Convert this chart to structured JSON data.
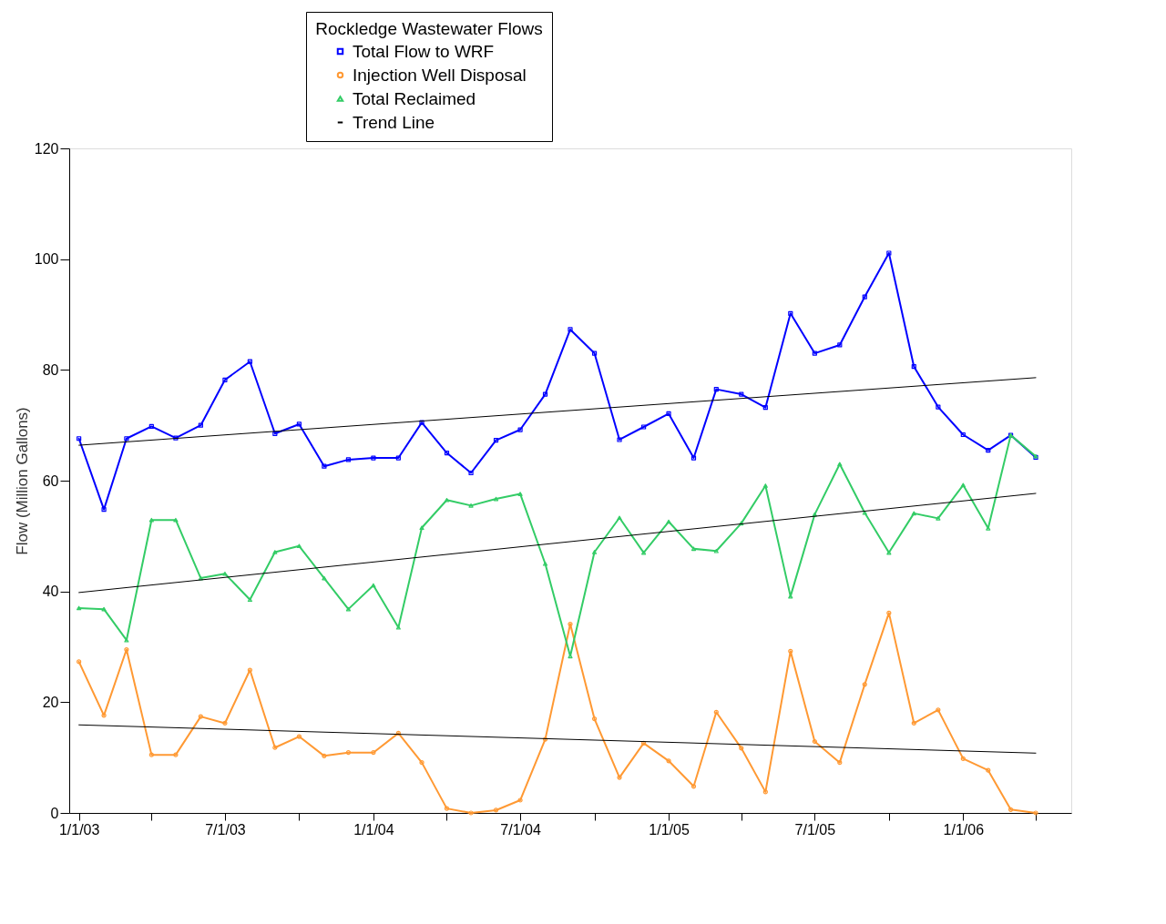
{
  "chart_data": {
    "type": "line",
    "legend_title": "Rockledge Wastewater Flows",
    "ylabel": "Flow (Million Gallons)",
    "legend": "top",
    "grid": false,
    "x": [
      "2003-01",
      "2003-02",
      "2003-03",
      "2003-04",
      "2003-05",
      "2003-06",
      "2003-07",
      "2003-08",
      "2003-09",
      "2003-10",
      "2003-11",
      "2003-12",
      "2004-01",
      "2004-02",
      "2004-03",
      "2004-04",
      "2004-05",
      "2004-06",
      "2004-07",
      "2004-08",
      "2004-09",
      "2004-10",
      "2004-11",
      "2004-12",
      "2005-01",
      "2005-02",
      "2005-03",
      "2005-04",
      "2005-05",
      "2005-06",
      "2005-07",
      "2005-08",
      "2005-09",
      "2005-10",
      "2005-11",
      "2005-12",
      "2006-01",
      "2006-02",
      "2006-03",
      "2006-04"
    ],
    "xlim": [
      "2002-12-20",
      "2006-05-15"
    ],
    "xticks": [
      {
        "value": "2003-01-01",
        "label": "1/1/03"
      },
      {
        "value": "2003-04-01",
        "label": null
      },
      {
        "value": "2003-07-01",
        "label": "7/1/03"
      },
      {
        "value": "2003-10-01",
        "label": null
      },
      {
        "value": "2004-01-01",
        "label": "1/1/04"
      },
      {
        "value": "2004-04-01",
        "label": null
      },
      {
        "value": "2004-07-01",
        "label": "7/1/04"
      },
      {
        "value": "2004-10-01",
        "label": null
      },
      {
        "value": "2005-01-01",
        "label": "1/1/05"
      },
      {
        "value": "2005-04-01",
        "label": null
      },
      {
        "value": "2005-07-01",
        "label": "7/1/05"
      },
      {
        "value": "2005-10-01",
        "label": null
      },
      {
        "value": "2006-01-01",
        "label": "1/1/06"
      },
      {
        "value": "2006-04-01",
        "label": null
      }
    ],
    "ylim": [
      0,
      120
    ],
    "yticks": [
      0,
      20,
      40,
      60,
      80,
      100,
      120
    ],
    "series": [
      {
        "name": "Total Flow to WRF",
        "color": "#0000ff",
        "marker": "square",
        "values": [
          67.6,
          54.8,
          67.6,
          69.8,
          67.7,
          70.0,
          78.2,
          81.5,
          68.5,
          70.2,
          62.6,
          63.8,
          64.1,
          64.1,
          70.5,
          65.0,
          61.4,
          67.3,
          69.2,
          75.6,
          87.3,
          83.0,
          67.4,
          69.7,
          72.1,
          64.1,
          76.5,
          75.6,
          73.2,
          90.2,
          83.0,
          84.5,
          93.2,
          101.1,
          80.6,
          73.3,
          68.3,
          65.5,
          68.2,
          64.2
        ]
      },
      {
        "name": "Injection Well Disposal",
        "color": "#ff9933",
        "marker": "circle",
        "values": [
          27.3,
          17.6,
          29.5,
          10.5,
          10.5,
          17.4,
          16.2,
          25.8,
          11.8,
          13.8,
          10.3,
          10.9,
          10.9,
          14.4,
          9.1,
          0.8,
          0,
          0.5,
          2.3,
          13.3,
          34.1,
          17.0,
          6.4,
          12.6,
          9.4,
          4.8,
          18.2,
          11.7,
          3.8,
          29.2,
          12.9,
          9.1,
          23.2,
          36.1,
          16.2,
          18.6,
          9.8,
          7.7,
          0.6,
          0
        ]
      },
      {
        "name": "Total Reclaimed",
        "color": "#33cc66",
        "marker": "triangle",
        "values": [
          37.0,
          36.8,
          31.2,
          52.9,
          52.9,
          42.4,
          43.2,
          38.5,
          47.1,
          48.2,
          42.4,
          36.8,
          41.1,
          33.5,
          51.5,
          56.5,
          55.5,
          56.7,
          57.6,
          45.0,
          28.3,
          47.1,
          53.3,
          47.0,
          52.6,
          47.7,
          47.3,
          52.3,
          59.1,
          39.1,
          53.9,
          63.0,
          54.2,
          47.0,
          54.1,
          53.2,
          59.2,
          51.4,
          68.2,
          64.4
        ]
      },
      {
        "name": "Trend Line",
        "color": "#000000",
        "marker": "none",
        "x": [
          "2003-01",
          "2006-04"
        ],
        "values": [
          66.4,
          78.6
        ]
      },
      {
        "color": "#000000",
        "marker": "none",
        "x": [
          "2003-01",
          "2006-04"
        ],
        "values": [
          39.8,
          57.7
        ]
      },
      {
        "color": "#000000",
        "marker": "none",
        "x": [
          "2003-01",
          "2006-04"
        ],
        "values": [
          15.9,
          10.8
        ]
      }
    ]
  }
}
